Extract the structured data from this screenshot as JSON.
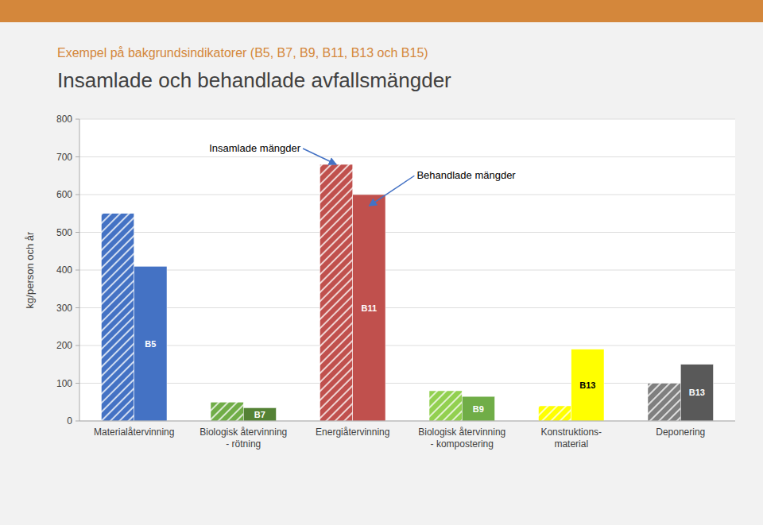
{
  "chart_data": {
    "type": "bar",
    "title": "Insamlade och behandlade avfallsmängder",
    "subtitle": "Exempel på bakgrundsindikatorer (B5, B7, B9, B11, B13 och B15)",
    "ylabel": "kg/person och år",
    "categories": [
      "Materialåtervinning",
      "Biologisk återvinning\n- rötning",
      "Energiåtervinning",
      "Biologisk återvinning\n- kompostering",
      "Konstruktions-\nmaterial",
      "Deponering"
    ],
    "series": [
      {
        "values": [
          550,
          50,
          680,
          80,
          40,
          100
        ],
        "colors": [
          "#4472C4",
          "#70AD47",
          "#C0504D",
          "#92D050",
          "#FFFF00",
          "#7F7F7F"
        ]
      },
      {
        "values": [
          410,
          35,
          600,
          65,
          190,
          150
        ],
        "colors": [
          "#4472C4",
          "#548235",
          "#C0504D",
          "#70AD47",
          "#FFFF00",
          "#595959"
        ],
        "labels": [
          "B5",
          "B7",
          "B11",
          "B9",
          "B13",
          "B13"
        ]
      }
    ],
    "ylim": [
      0,
      800
    ],
    "yticks": [
      0,
      100,
      200,
      300,
      400,
      500,
      600,
      700,
      800
    ],
    "grid": true,
    "annotations": [
      {
        "text": "Insamlade mängder",
        "category": "Energiåtervinning",
        "series": 0,
        "value": 680
      },
      {
        "text": "Behandlade mängder",
        "category": "Energiåtervinning",
        "series": 1,
        "value": 570
      }
    ]
  }
}
